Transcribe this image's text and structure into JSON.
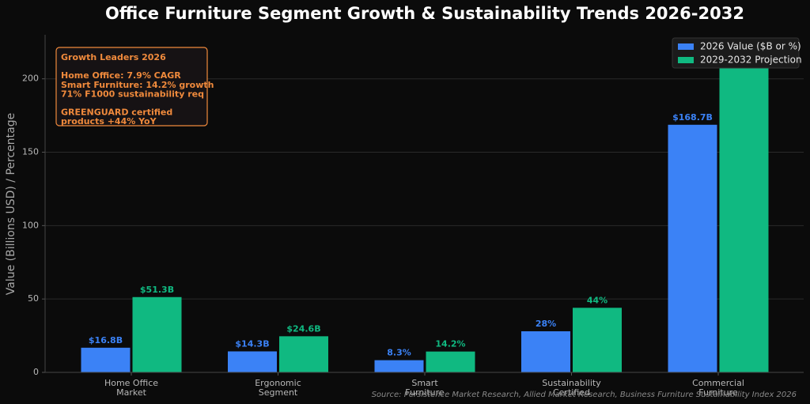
{
  "chart_data": {
    "type": "bar",
    "title": "Office Furniture Segment Growth & Sustainability Trends 2026-2032",
    "ylabel": "Value (Billions USD) / Percentage",
    "xlabel": "",
    "ylim": [
      0,
      230
    ],
    "yticks": [
      0,
      50,
      100,
      150,
      200
    ],
    "grid": true,
    "legend_position": "top-right",
    "categories": [
      [
        "Home Office",
        "Market"
      ],
      [
        "Ergonomic",
        "Segment"
      ],
      [
        "Smart",
        "Furniture"
      ],
      [
        "Sustainability",
        "Certified"
      ],
      [
        "Commercial",
        "Furniture"
      ]
    ],
    "series": [
      {
        "name": "2026 Value ($B or %)",
        "color": "#3b82f6",
        "values": [
          16.8,
          14.3,
          8.3,
          28,
          168.7
        ],
        "labels": [
          "$16.8B",
          "$14.3B",
          "8.3%",
          "28%",
          "$168.7B"
        ]
      },
      {
        "name": "2029-2032 Projection",
        "color": "#10b981",
        "values": [
          51.3,
          24.6,
          14.2,
          44,
          214
        ],
        "labels": [
          "$51.3B",
          "$24.6B",
          "14.2%",
          "44%",
          ""
        ]
      }
    ],
    "annotation": {
      "title": "Growth Leaders 2026",
      "lines": [
        "",
        "Home Office: 7.9% CAGR",
        "Smart Furniture: 14.2% growth",
        "71% F1000 sustainability req",
        "",
        "GREENGUARD certified",
        "products +44% YoY"
      ],
      "color": "#f08a3c"
    },
    "source": "Source: Persistence Market Research, Allied Market Research, Business Furniture Sustainability Index 2026"
  }
}
